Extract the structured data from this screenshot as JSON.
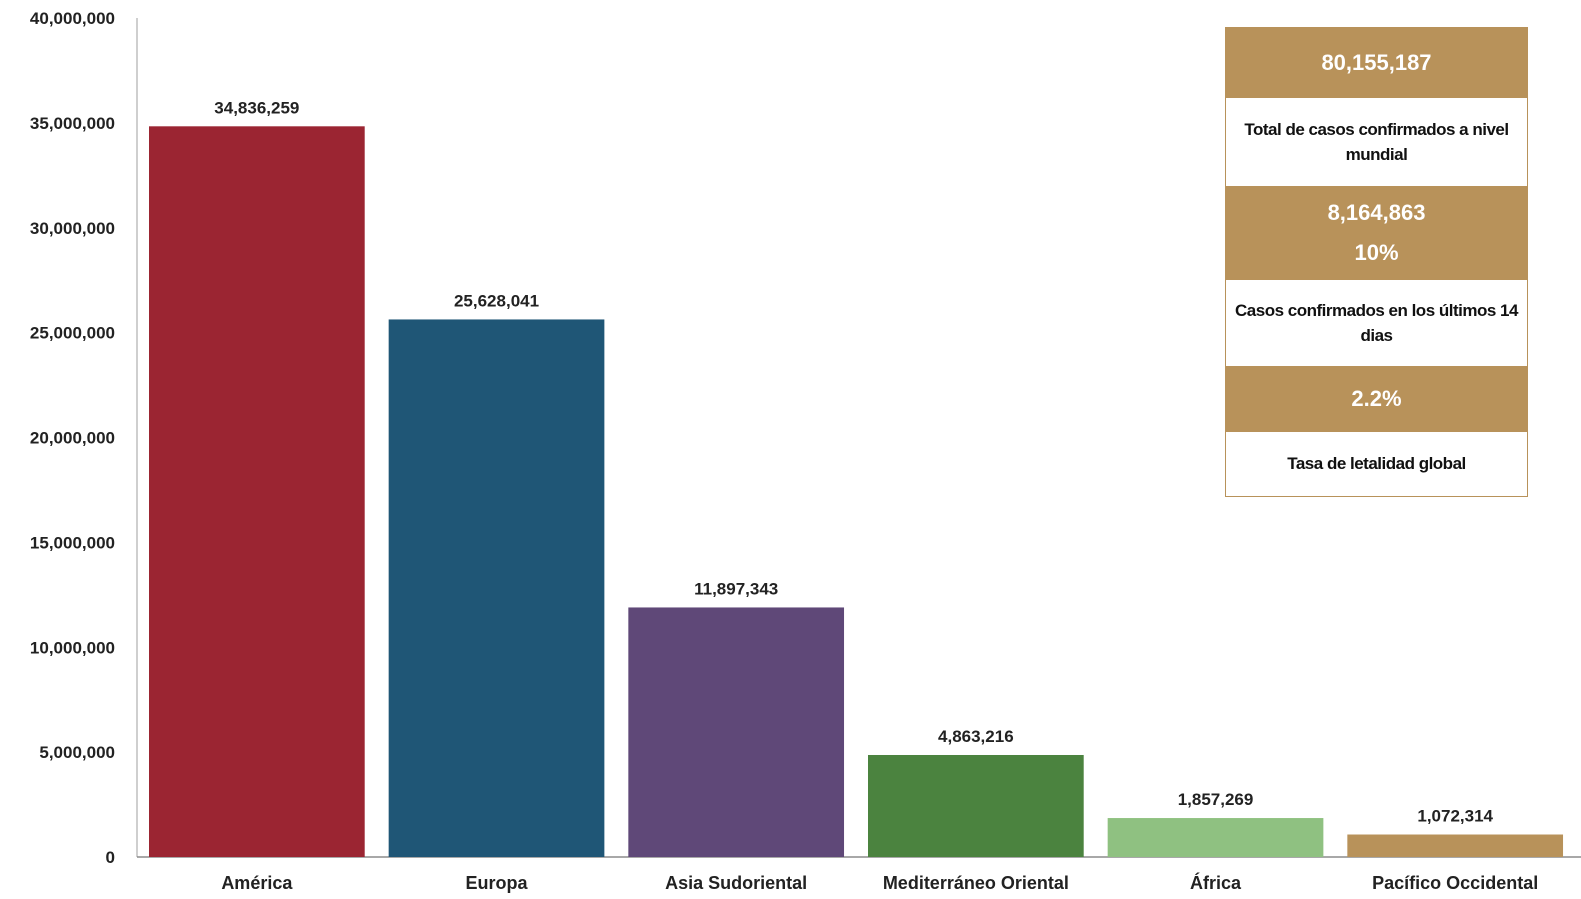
{
  "chart_data": {
    "type": "bar",
    "title": "",
    "xlabel": "",
    "ylabel": "",
    "ylim": [
      0,
      40000000
    ],
    "y_ticks": [
      "0",
      "5,000,000",
      "10,000,000",
      "15,000,000",
      "20,000,000",
      "25,000,000",
      "30,000,000",
      "35,000,000",
      "40,000,000"
    ],
    "grid": false,
    "categories": [
      "América",
      "Europa",
      "Asia Sudoriental",
      "Mediterráneo Oriental",
      "África",
      "Pacífico Occidental"
    ],
    "values": [
      34836259,
      25628041,
      11897343,
      4863216,
      1857269,
      1072314
    ],
    "value_labels": [
      "34,836,259",
      "25,628,041",
      "11,897,343",
      "4,863,216",
      "1,857,269",
      "1,072,314"
    ],
    "colors": [
      "#9b2532",
      "#1f5676",
      "#5f4878",
      "#4b833f",
      "#8fc181",
      "#b8925a"
    ]
  },
  "summary": {
    "total_cases": "80,155,187",
    "total_cases_label": "Total de casos confirmados a nivel mundial",
    "recent_cases": "8,164,863",
    "recent_percent": "10%",
    "recent_cases_label": "Casos confirmados en los últimos 14 dias",
    "fatality_rate": "2.2%",
    "fatality_rate_label": "Tasa de letalidad global",
    "accent_color": "#b8925a"
  }
}
